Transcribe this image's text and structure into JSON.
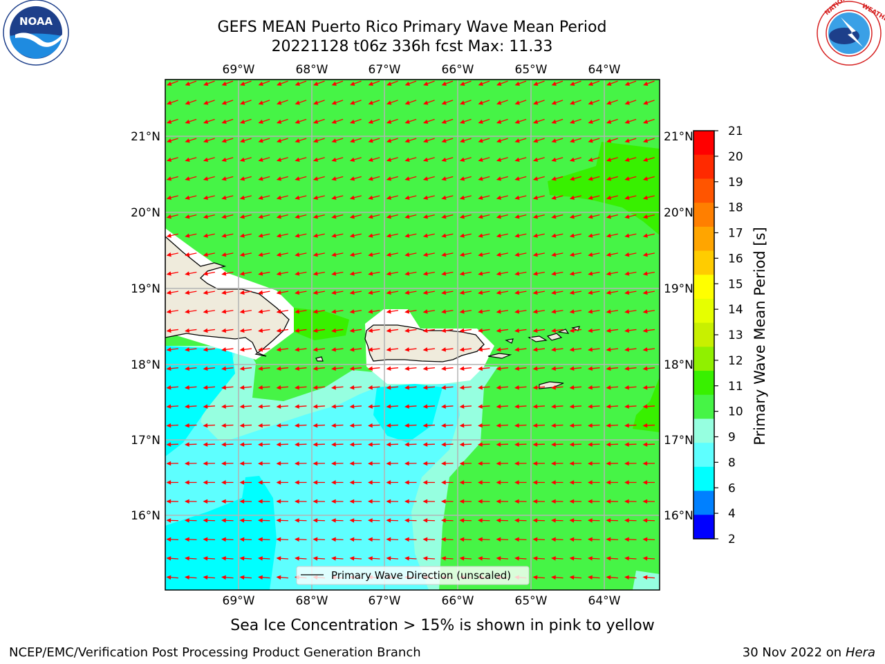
{
  "title": {
    "line1": "GEFS MEAN Puerto Rico Primary Wave Mean Period",
    "line2": "20221128 t06z 336h fcst   Max: 11.33"
  },
  "logos": {
    "noaa": {
      "text": "NOAA",
      "ring_text": "NATIONAL OCEANIC AND ATMOSPHERIC ADMINISTRATION · U.S. DEPARTMENT OF COMMERCE"
    },
    "nws": {
      "ring_text": "NATIONAL WEATHER SERVICE"
    }
  },
  "map": {
    "lon_labels": [
      "69°W",
      "68°W",
      "67°W",
      "66°W",
      "65°W",
      "64°W"
    ],
    "lat_labels": [
      "21°N",
      "20°N",
      "19°N",
      "18°N",
      "17°N",
      "16°N"
    ],
    "legend_label": "Primary Wave Direction (unscaled)",
    "arrow_color": "#ff0000",
    "land_color": "#efebdc"
  },
  "colorbar": {
    "label": "Primary Wave Mean Period [s]",
    "ticks": [
      "21",
      "20",
      "19",
      "18",
      "17",
      "16",
      "15",
      "14",
      "13",
      "12",
      "11",
      "10",
      "9",
      "8",
      "6",
      "4",
      "2"
    ],
    "colors": [
      "#ff0000",
      "#ff2a00",
      "#ff5500",
      "#ff7f00",
      "#ffa500",
      "#ffcc00",
      "#ffff00",
      "#e6ff00",
      "#c8f000",
      "#90f000",
      "#38f000",
      "#46f446",
      "#96ffe0",
      "#5effff",
      "#00ffff",
      "#0080ff",
      "#0000ff"
    ]
  },
  "footer": {
    "sea_ice_note": "Sea Ice Concentration > 15% is shown in pink to yellow",
    "left": "NCEP/EMC/Verification Post Processing Product Generation Branch",
    "right_date": "30 Nov 2022 on",
    "right_host": "Hera"
  }
}
